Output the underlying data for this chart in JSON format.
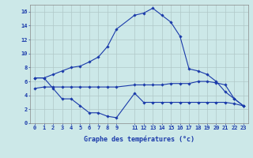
{
  "xlabel": "Graphe des températures (°c)",
  "bg_color": "#cce8e8",
  "grid_color": "#b0c8c8",
  "line_color": "#1a3aaa",
  "ylim": [
    0,
    17
  ],
  "xlim": [
    -0.5,
    23.5
  ],
  "yticks": [
    0,
    2,
    4,
    6,
    8,
    10,
    12,
    14,
    16
  ],
  "xticks": [
    0,
    1,
    2,
    3,
    4,
    5,
    6,
    7,
    8,
    9,
    11,
    12,
    13,
    14,
    15,
    16,
    17,
    18,
    19,
    20,
    21,
    22,
    23
  ],
  "series": [
    {
      "x": [
        0,
        1,
        2,
        3,
        4,
        5,
        6,
        7,
        8,
        9,
        11,
        12,
        13,
        14,
        15,
        16,
        17,
        18,
        19,
        20,
        21,
        22,
        23
      ],
      "y": [
        6.5,
        6.5,
        7.0,
        7.5,
        8.0,
        8.2,
        8.8,
        9.5,
        11.0,
        13.5,
        15.5,
        15.8,
        16.5,
        15.5,
        14.5,
        12.5,
        7.8,
        7.5,
        7.0,
        6.0,
        4.5,
        3.5,
        2.5
      ]
    },
    {
      "x": [
        0,
        1,
        2,
        3,
        4,
        5,
        6,
        7,
        8,
        9,
        11,
        12,
        13,
        14,
        15,
        16,
        17,
        18,
        19,
        20,
        21,
        22,
        23
      ],
      "y": [
        5.0,
        5.2,
        5.2,
        5.2,
        5.2,
        5.2,
        5.2,
        5.2,
        5.2,
        5.2,
        5.5,
        5.5,
        5.5,
        5.5,
        5.7,
        5.7,
        5.7,
        6.0,
        6.0,
        5.8,
        5.5,
        3.5,
        2.5
      ]
    },
    {
      "x": [
        0,
        1,
        2,
        3,
        4,
        5,
        6,
        7,
        8,
        9,
        11,
        12,
        13,
        14,
        15,
        16,
        17,
        18,
        19,
        20,
        21,
        22,
        23
      ],
      "y": [
        6.5,
        6.5,
        5.0,
        3.5,
        3.5,
        2.5,
        1.5,
        1.5,
        1.0,
        0.8,
        4.3,
        3.0,
        3.0,
        3.0,
        3.0,
        3.0,
        3.0,
        3.0,
        3.0,
        3.0,
        3.0,
        2.8,
        2.5
      ]
    }
  ]
}
